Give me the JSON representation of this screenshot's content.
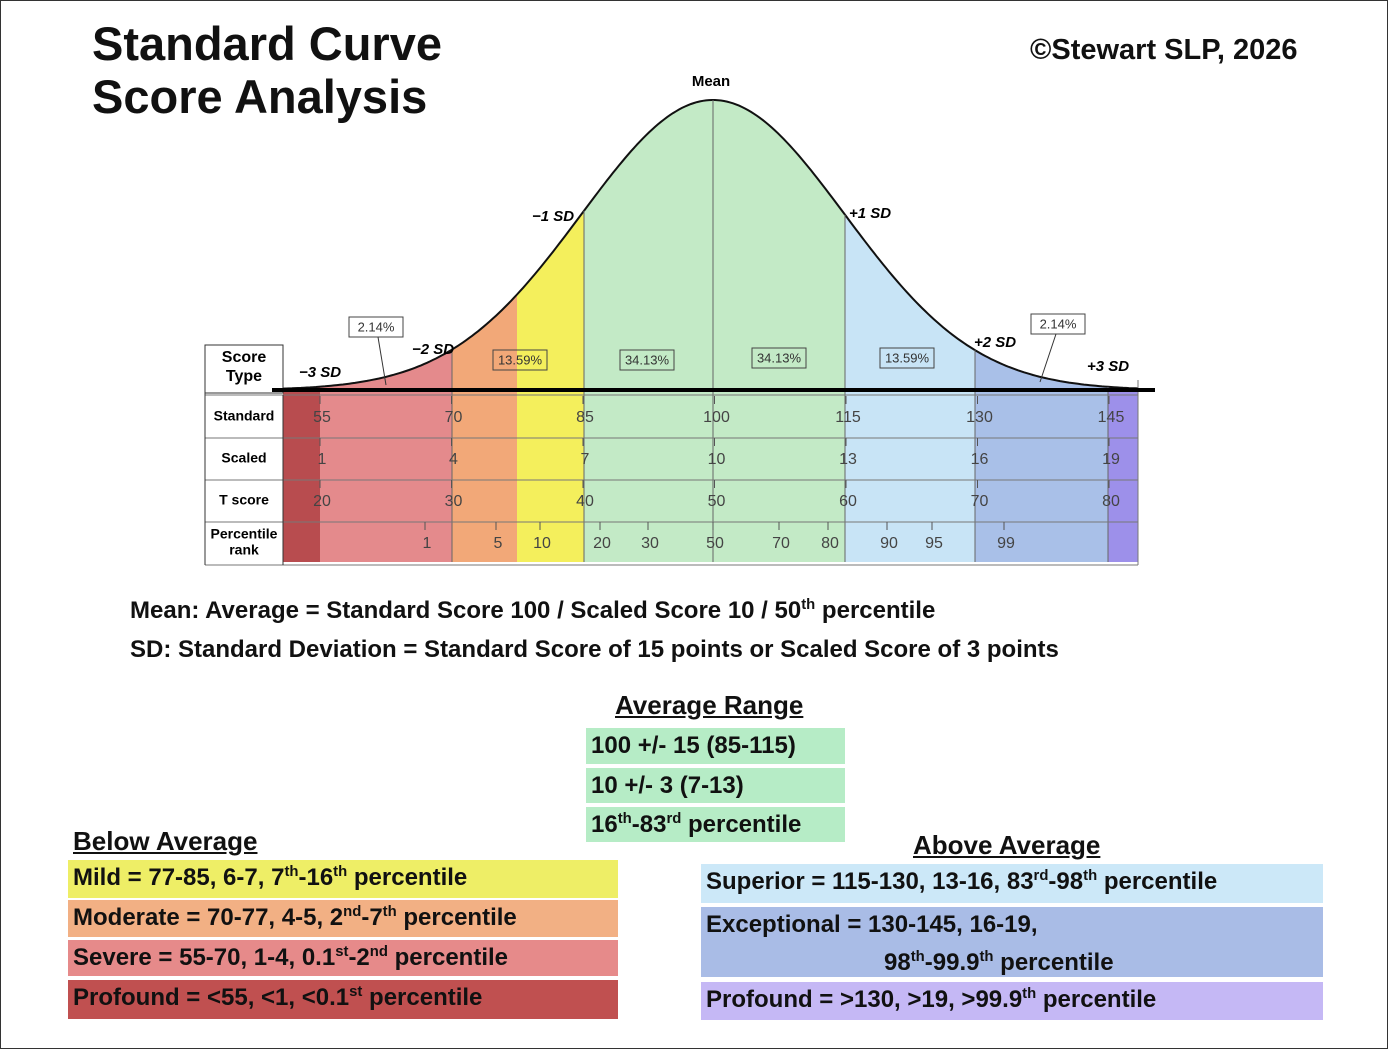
{
  "header": {
    "title_lines": [
      "Standard Curve",
      "Score Analysis"
    ],
    "copyright": "©Stewart SLP, 2026"
  },
  "curve": {
    "mean_label": "Mean",
    "sd_labels": [
      "−3 SD",
      "−2 SD",
      "−1 SD",
      "+1 SD",
      "+2 SD",
      "+3 SD"
    ],
    "percentages": [
      "2.14%",
      "13.59%",
      "34.13%",
      "34.13%",
      "13.59%",
      "2.14%"
    ]
  },
  "table": {
    "header": [
      "Score",
      "Type"
    ],
    "rows": [
      {
        "label": [
          "Standard"
        ],
        "values": [
          "55",
          "70",
          "85",
          "100",
          "115",
          "130",
          "145"
        ]
      },
      {
        "label": [
          "Scaled"
        ],
        "values": [
          "1",
          "4",
          "7",
          "10",
          "13",
          "16",
          "19"
        ]
      },
      {
        "label": [
          "T score"
        ],
        "values": [
          "20",
          "30",
          "40",
          "50",
          "60",
          "70",
          "80"
        ]
      },
      {
        "label": [
          "Percentile",
          "rank"
        ],
        "values": [
          "1",
          "5",
          "10",
          "20",
          "30",
          "50",
          "70",
          "80",
          "90",
          "95",
          "99"
        ]
      }
    ]
  },
  "notes": [
    [
      "Mean: Average = Standard Score 100 / Scaled Score 10 / 50",
      "th",
      " percentile"
    ],
    [
      "SD: Standard Deviation = Standard Score of 15 points or Scaled Score of 3 points"
    ]
  ],
  "average": {
    "heading": "Average Range",
    "items": [
      [
        [
          "100 +/- 15 (85-115)"
        ]
      ],
      [
        [
          "10 +/- 3 (7-13)"
        ]
      ],
      [
        [
          "16",
          "th",
          "-83",
          "rd",
          " percentile"
        ]
      ]
    ]
  },
  "below": {
    "heading": "Below Average",
    "items": [
      [
        [
          "Mild = 77-85, 6-7, 7",
          "th",
          "-16",
          "th",
          " percentile"
        ]
      ],
      [
        [
          "Moderate = 70-77, 4-5, 2",
          "nd",
          "-7",
          "th",
          " percentile"
        ]
      ],
      [
        [
          "Severe = 55-70, 1-4, 0.1",
          "st",
          "-2",
          "nd",
          " percentile"
        ]
      ],
      [
        [
          "Profound = <55, <1, <0.1",
          "st",
          " percentile"
        ]
      ]
    ]
  },
  "above": {
    "heading": "Above Average",
    "items": [
      [
        [
          "Superior = 115-130, 13-16, 83",
          "rd",
          "-98",
          "th",
          " percentile"
        ]
      ],
      [
        [
          "Exceptional = 130-145, 16-19,"
        ],
        [
          "98",
          "th",
          "-99.9",
          "th",
          " percentile"
        ]
      ],
      [
        [
          "Profound = >130, >19, >99.9",
          "th",
          " percentile"
        ]
      ]
    ]
  }
}
